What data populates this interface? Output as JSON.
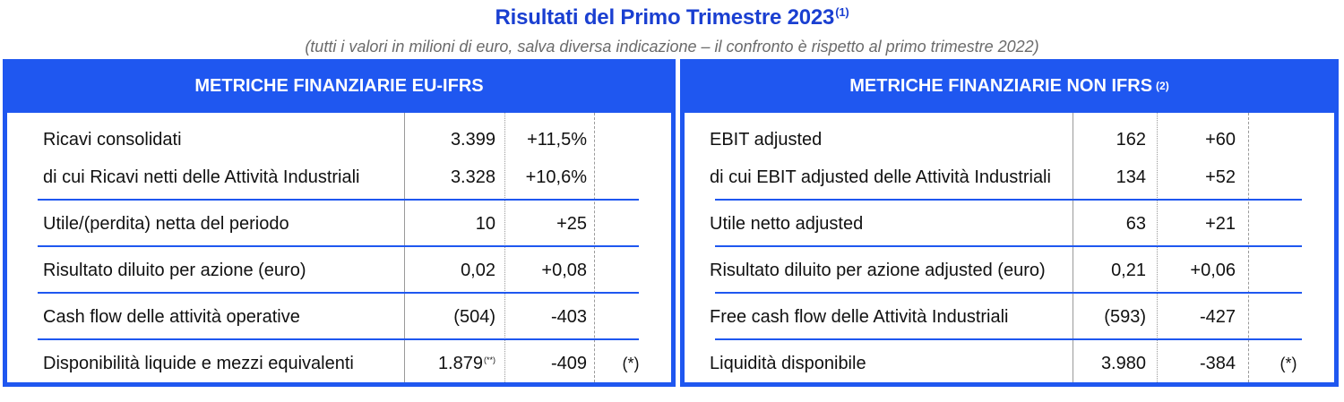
{
  "title": "Risultati del Primo Trimestre 2023",
  "title_note": "(1)",
  "subtitle": "(tutti i valori in milioni di euro, salva diversa indicazione – il confronto è rispetto al primo trimestre 2022)",
  "colors": {
    "accent": "#1f57f0",
    "title": "#1a3fd1",
    "subtitle": "#6b6b6b"
  },
  "left": {
    "header": "METRICHE FINANZIARIE EU-IFRS",
    "rows": [
      {
        "label": "Ricavi consolidati",
        "value": "3.399",
        "change": "+11,5%",
        "note": ""
      },
      {
        "label": "di cui Ricavi netti delle Attività Industriali",
        "value": "3.328",
        "change": "+10,6%",
        "note": ""
      },
      {
        "label": "Utile/(perdita) netta del periodo",
        "value": "10",
        "change": "+25",
        "note": ""
      },
      {
        "label": "Risultato diluito per azione (euro)",
        "value": "0,02",
        "change": "+0,08",
        "note": ""
      },
      {
        "label": "Cash flow delle attività operative",
        "value": "(504)",
        "change": "-403",
        "note": ""
      },
      {
        "label": "Disponibilità liquide e mezzi equivalenti",
        "value": "1.879",
        "value_note": "(**)",
        "change": "-409",
        "note": "(*)"
      }
    ]
  },
  "right": {
    "header": "METRICHE FINANZIARIE NON IFRS",
    "header_note": "(2)",
    "rows": [
      {
        "label": "EBIT adjusted",
        "value": "162",
        "change": "+60",
        "note": ""
      },
      {
        "label": "di cui EBIT adjusted delle Attività Industriali",
        "value": "134",
        "change": "+52",
        "note": ""
      },
      {
        "label": "Utile netto adjusted",
        "value": "63",
        "change": "+21",
        "note": ""
      },
      {
        "label": "Risultato diluito per azione adjusted (euro)",
        "value": "0,21",
        "change": "+0,06",
        "note": ""
      },
      {
        "label": "Free cash flow delle Attività Industriali",
        "value": "(593)",
        "change": "-427",
        "note": ""
      },
      {
        "label": "Liquidità disponibile",
        "value": "3.980",
        "change": "-384",
        "note": "(*)"
      }
    ]
  }
}
